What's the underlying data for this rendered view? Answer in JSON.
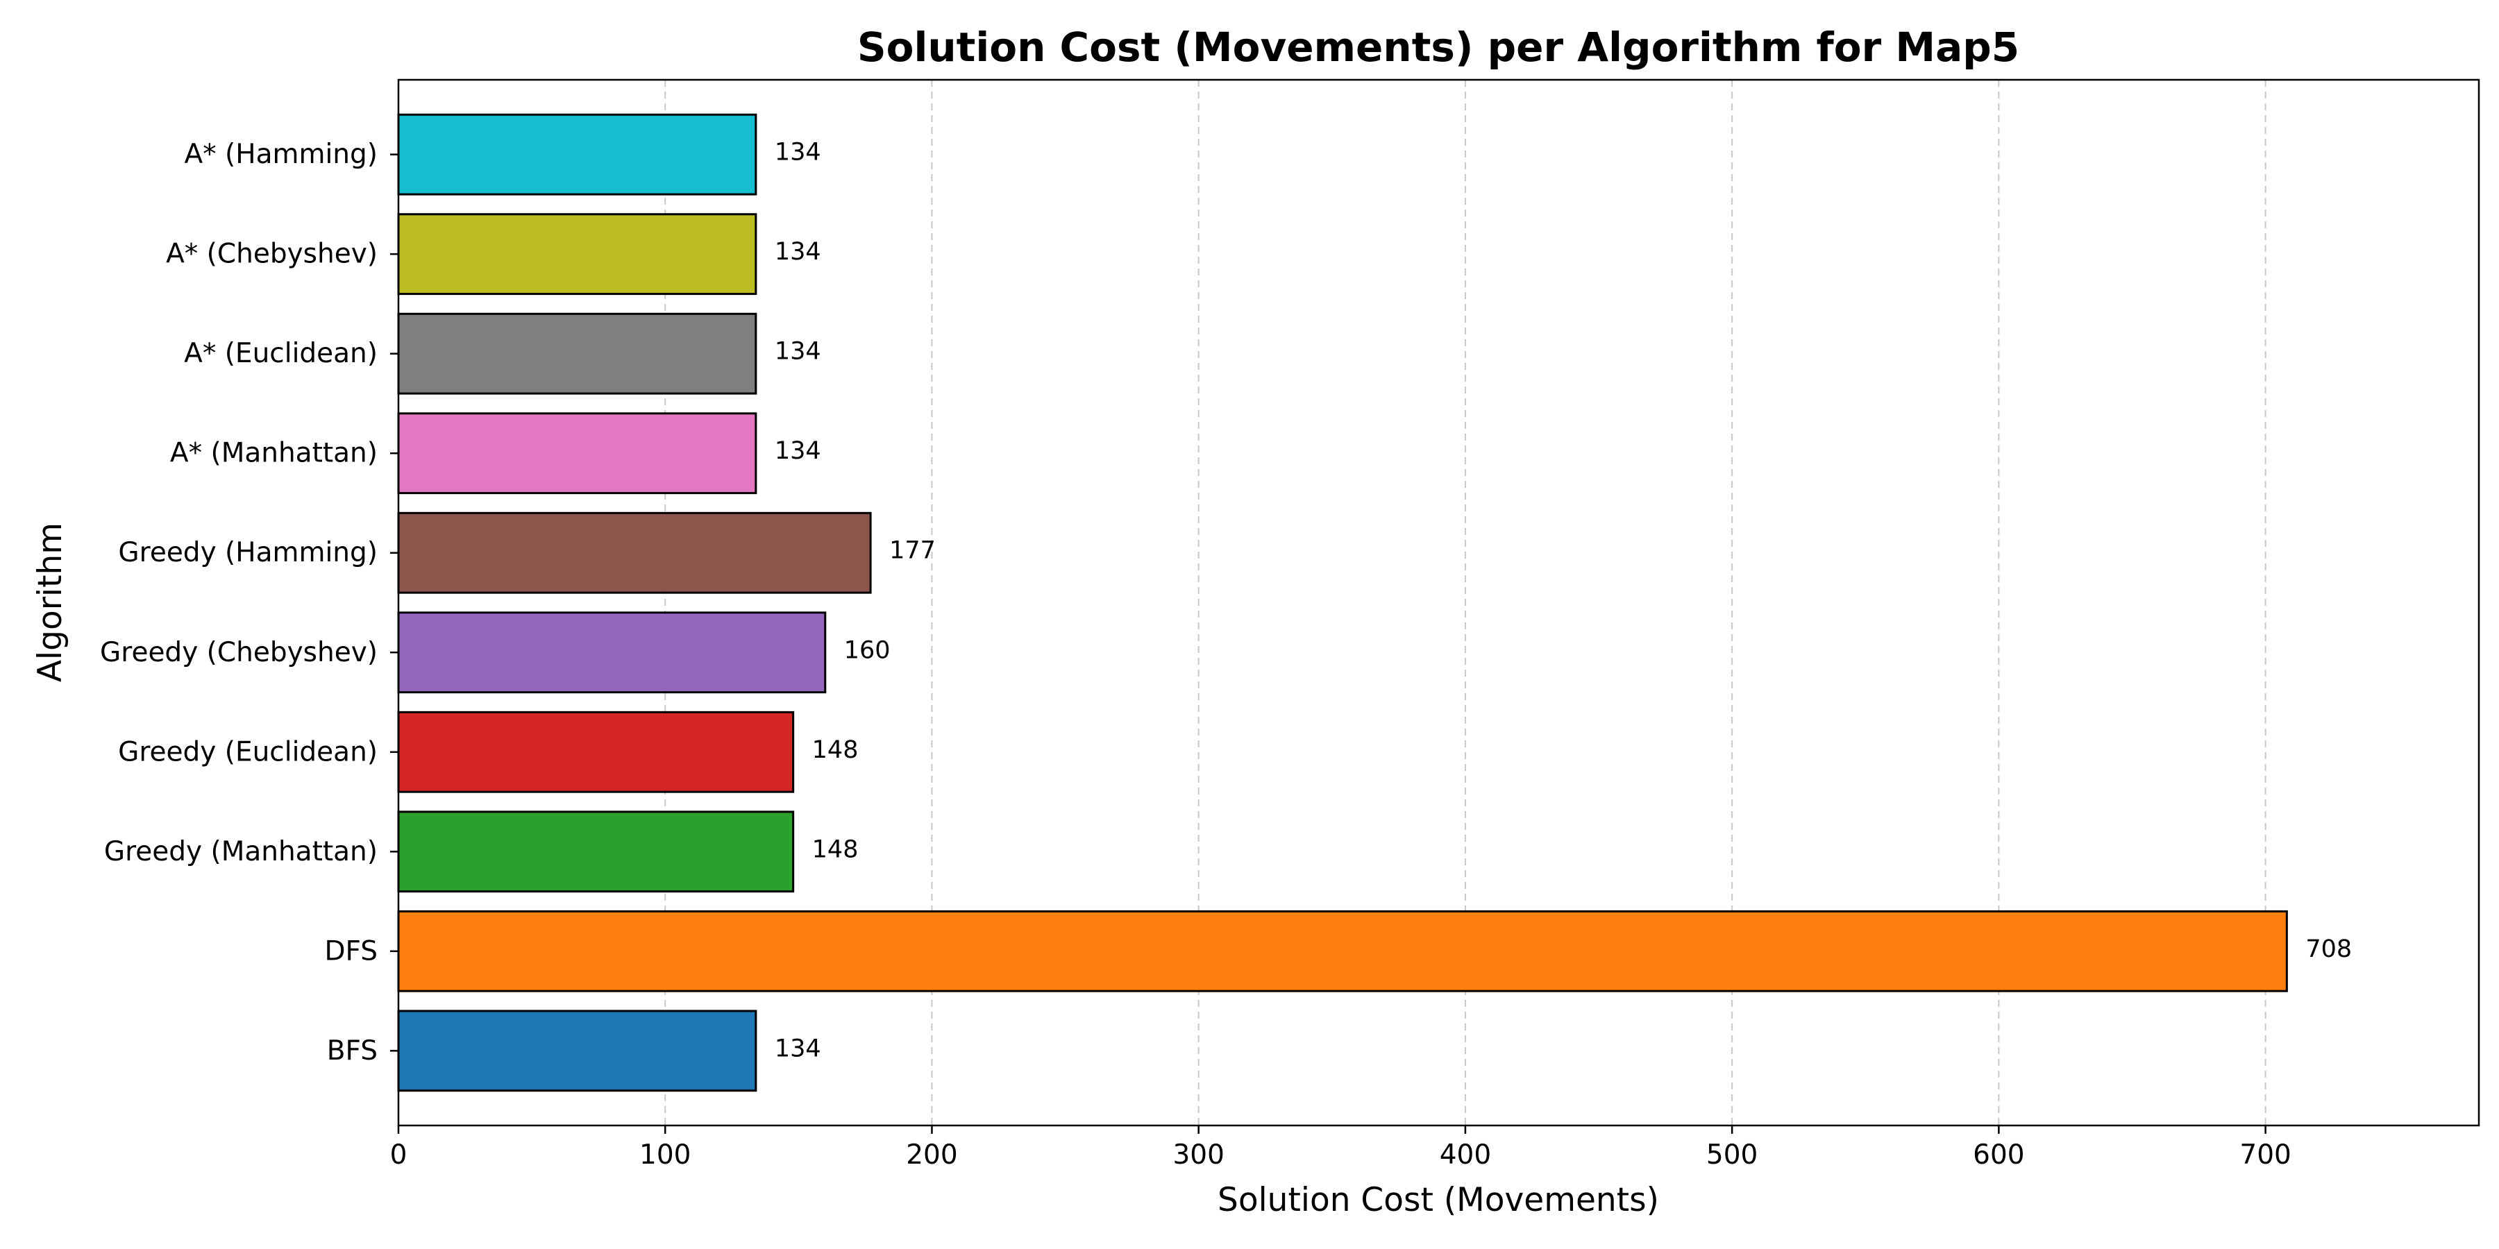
{
  "chart_data": {
    "type": "bar",
    "orientation": "horizontal",
    "title": "Solution Cost (Movements) per Algorithm for Map5",
    "xlabel": "Solution Cost (Movements)",
    "ylabel": "Algorithm",
    "xlim": [
      0,
      780
    ],
    "xticks": [
      0,
      100,
      200,
      300,
      400,
      500,
      600,
      700
    ],
    "grid": "x-axis dashed",
    "categories": [
      "BFS",
      "DFS",
      "Greedy (Manhattan)",
      "Greedy (Euclidean)",
      "Greedy (Chebyshev)",
      "Greedy (Hamming)",
      "A* (Manhattan)",
      "A* (Euclidean)",
      "A* (Chebyshev)",
      "A* (Hamming)"
    ],
    "values": [
      134,
      708,
      148,
      148,
      160,
      177,
      134,
      134,
      134,
      134
    ],
    "data_labels": [
      "134",
      "708",
      "148",
      "148",
      "160",
      "177",
      "134",
      "134",
      "134",
      "134"
    ],
    "colors": [
      "#1f77b4",
      "#ff7f0e",
      "#2ca02c",
      "#d62728",
      "#9467bd",
      "#8c564b",
      "#e377c2",
      "#7f7f7f",
      "#bcbd22",
      "#17becf"
    ]
  }
}
